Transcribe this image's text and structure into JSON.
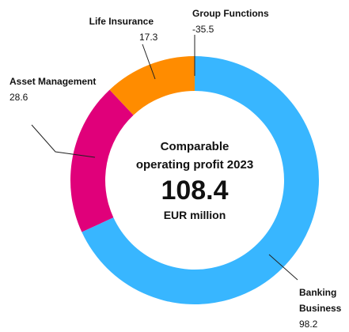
{
  "chart_data": {
    "type": "donut",
    "title_lines": [
      "Comparable",
      "operating profit 2023"
    ],
    "total": 108.4,
    "unit": "EUR million",
    "categories": [
      "Banking Business",
      "Asset Management",
      "Life Insurance",
      "Group Functions"
    ],
    "values": [
      98.2,
      28.6,
      17.3,
      -35.5
    ],
    "colors": [
      "#38b6ff",
      "#e0007a",
      "#ff8c00",
      null
    ]
  }
}
